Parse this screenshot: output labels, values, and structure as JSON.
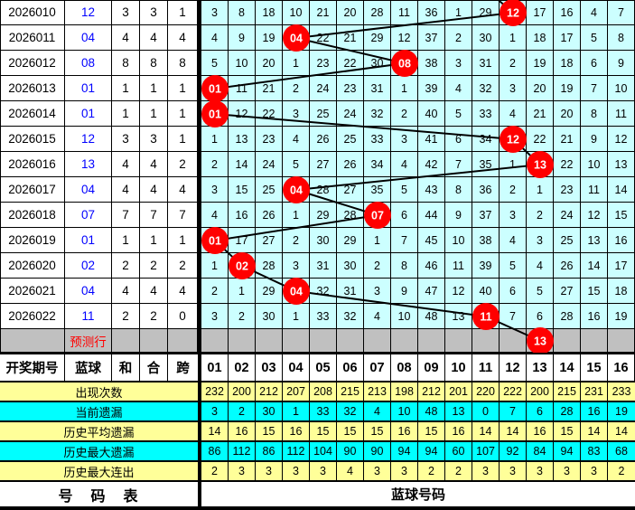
{
  "colors": {
    "grid_bg": "#CCFFFF",
    "stat_yellow": "#FFFF99",
    "stat_cyan": "#00FFFF",
    "prediction_gray": "#C0C0C0",
    "ball_red": "#FF0000",
    "blue_text": "#0000FF",
    "line": "#000000"
  },
  "bottom_header": [
    "开奖期号",
    "蓝球",
    "和",
    "合",
    "跨"
  ],
  "columns": [
    "01",
    "02",
    "03",
    "04",
    "05",
    "06",
    "07",
    "08",
    "09",
    "10",
    "11",
    "12",
    "13",
    "14",
    "15",
    "16"
  ],
  "rows": [
    {
      "period": "2026010",
      "blue": "12",
      "sum": "3",
      "combo": "3",
      "span": "1",
      "cells": [
        "3",
        "8",
        "18",
        "10",
        "21",
        "20",
        "28",
        "11",
        "36",
        "1",
        "29",
        "",
        "17",
        "16",
        "4",
        "7"
      ]
    },
    {
      "period": "2026011",
      "blue": "04",
      "sum": "4",
      "combo": "4",
      "span": "4",
      "cells": [
        "4",
        "9",
        "19",
        "",
        "22",
        "21",
        "29",
        "12",
        "37",
        "2",
        "30",
        "1",
        "18",
        "17",
        "5",
        "8"
      ]
    },
    {
      "period": "2026012",
      "blue": "08",
      "sum": "8",
      "combo": "8",
      "span": "8",
      "cells": [
        "5",
        "10",
        "20",
        "1",
        "23",
        "22",
        "30",
        "",
        "38",
        "3",
        "31",
        "2",
        "19",
        "18",
        "6",
        "9"
      ]
    },
    {
      "period": "2026013",
      "blue": "01",
      "sum": "1",
      "combo": "1",
      "span": "1",
      "cells": [
        "",
        "11",
        "21",
        "2",
        "24",
        "23",
        "31",
        "1",
        "39",
        "4",
        "32",
        "3",
        "20",
        "19",
        "7",
        "10"
      ]
    },
    {
      "period": "2026014",
      "blue": "01",
      "sum": "1",
      "combo": "1",
      "span": "1",
      "cells": [
        "",
        "12",
        "22",
        "3",
        "25",
        "24",
        "32",
        "2",
        "40",
        "5",
        "33",
        "4",
        "21",
        "20",
        "8",
        "11"
      ]
    },
    {
      "period": "2026015",
      "blue": "12",
      "sum": "3",
      "combo": "3",
      "span": "1",
      "cells": [
        "1",
        "13",
        "23",
        "4",
        "26",
        "25",
        "33",
        "3",
        "41",
        "6",
        "34",
        "",
        "22",
        "21",
        "9",
        "12"
      ]
    },
    {
      "period": "2026016",
      "blue": "13",
      "sum": "4",
      "combo": "4",
      "span": "2",
      "cells": [
        "2",
        "14",
        "24",
        "5",
        "27",
        "26",
        "34",
        "4",
        "42",
        "7",
        "35",
        "1",
        "",
        "22",
        "10",
        "13"
      ]
    },
    {
      "period": "2026017",
      "blue": "04",
      "sum": "4",
      "combo": "4",
      "span": "4",
      "cells": [
        "3",
        "15",
        "25",
        "",
        "28",
        "27",
        "35",
        "5",
        "43",
        "8",
        "36",
        "2",
        "1",
        "23",
        "11",
        "14"
      ]
    },
    {
      "period": "2026018",
      "blue": "07",
      "sum": "7",
      "combo": "7",
      "span": "7",
      "cells": [
        "4",
        "16",
        "26",
        "1",
        "29",
        "28",
        "",
        "6",
        "44",
        "9",
        "37",
        "3",
        "2",
        "24",
        "12",
        "15"
      ]
    },
    {
      "period": "2026019",
      "blue": "01",
      "sum": "1",
      "combo": "1",
      "span": "1",
      "cells": [
        "",
        "17",
        "27",
        "2",
        "30",
        "29",
        "1",
        "7",
        "45",
        "10",
        "38",
        "4",
        "3",
        "25",
        "13",
        "16"
      ]
    },
    {
      "period": "2026020",
      "blue": "02",
      "sum": "2",
      "combo": "2",
      "span": "2",
      "cells": [
        "1",
        "",
        "28",
        "3",
        "31",
        "30",
        "2",
        "8",
        "46",
        "11",
        "39",
        "5",
        "4",
        "26",
        "14",
        "17"
      ]
    },
    {
      "period": "2026021",
      "blue": "04",
      "sum": "4",
      "combo": "4",
      "span": "4",
      "cells": [
        "2",
        "1",
        "29",
        "",
        "32",
        "31",
        "3",
        "9",
        "47",
        "12",
        "40",
        "6",
        "5",
        "27",
        "15",
        "18"
      ]
    },
    {
      "period": "2026022",
      "blue": "11",
      "sum": "2",
      "combo": "2",
      "span": "0",
      "cells": [
        "3",
        "2",
        "30",
        "1",
        "33",
        "32",
        "4",
        "10",
        "48",
        "13",
        "",
        "7",
        "6",
        "28",
        "16",
        "19"
      ]
    }
  ],
  "prediction": {
    "label": "预测行",
    "ball_label": "13"
  },
  "stats": [
    {
      "label": "出现次数",
      "bg": "yellow",
      "values": [
        "232",
        "200",
        "212",
        "207",
        "208",
        "215",
        "213",
        "198",
        "212",
        "201",
        "220",
        "222",
        "200",
        "215",
        "231",
        "233"
      ]
    },
    {
      "label": "当前遗漏",
      "bg": "cyan",
      "values": [
        "3",
        "2",
        "30",
        "1",
        "33",
        "32",
        "4",
        "10",
        "48",
        "13",
        "0",
        "7",
        "6",
        "28",
        "16",
        "19"
      ]
    },
    {
      "label": "历史平均遗漏",
      "bg": "yellow",
      "values": [
        "14",
        "16",
        "15",
        "16",
        "15",
        "15",
        "15",
        "16",
        "15",
        "16",
        "14",
        "14",
        "16",
        "15",
        "14",
        "14"
      ]
    },
    {
      "label": "历史最大遗漏",
      "bg": "cyan",
      "values": [
        "86",
        "112",
        "86",
        "112",
        "104",
        "90",
        "90",
        "94",
        "94",
        "60",
        "107",
        "92",
        "84",
        "94",
        "83",
        "68"
      ]
    },
    {
      "label": "历史最大连出",
      "bg": "yellow",
      "values": [
        "2",
        "3",
        "3",
        "3",
        "3",
        "4",
        "3",
        "3",
        "2",
        "2",
        "3",
        "3",
        "3",
        "3",
        "3",
        "2"
      ]
    }
  ],
  "section_labels": {
    "number_table": "号　码　表",
    "blue_numbers": "蓝球号码"
  },
  "chart_data": {
    "type": "table",
    "title": "蓝球号码走势图",
    "periods": [
      "2026010",
      "2026011",
      "2026012",
      "2026013",
      "2026014",
      "2026015",
      "2026016",
      "2026017",
      "2026018",
      "2026019",
      "2026020",
      "2026021",
      "2026022"
    ],
    "blue_ball": [
      12,
      4,
      8,
      1,
      1,
      12,
      13,
      4,
      7,
      1,
      2,
      4,
      11
    ],
    "predicted_blue_ball": 13,
    "sum_tail": [
      3,
      4,
      8,
      1,
      1,
      3,
      4,
      4,
      7,
      1,
      2,
      4,
      2
    ],
    "combo": [
      3,
      4,
      8,
      1,
      1,
      3,
      4,
      4,
      7,
      1,
      2,
      4,
      2
    ],
    "span": [
      1,
      4,
      8,
      1,
      1,
      1,
      2,
      4,
      7,
      1,
      2,
      4,
      0
    ],
    "ball_numbers": [
      1,
      2,
      3,
      4,
      5,
      6,
      7,
      8,
      9,
      10,
      11,
      12,
      13,
      14,
      15,
      16
    ],
    "appear_count": [
      232,
      200,
      212,
      207,
      208,
      215,
      213,
      198,
      212,
      201,
      220,
      222,
      200,
      215,
      231,
      233
    ],
    "current_missing": [
      3,
      2,
      30,
      1,
      33,
      32,
      4,
      10,
      48,
      13,
      0,
      7,
      6,
      28,
      16,
      19
    ],
    "avg_missing": [
      14,
      16,
      15,
      16,
      15,
      15,
      15,
      16,
      15,
      16,
      14,
      14,
      16,
      15,
      14,
      14
    ],
    "max_missing": [
      86,
      112,
      86,
      112,
      104,
      90,
      90,
      94,
      94,
      60,
      107,
      92,
      84,
      94,
      83,
      68
    ],
    "max_consecutive": [
      2,
      3,
      3,
      3,
      3,
      4,
      3,
      3,
      2,
      2,
      3,
      3,
      3,
      3,
      3,
      2
    ]
  }
}
